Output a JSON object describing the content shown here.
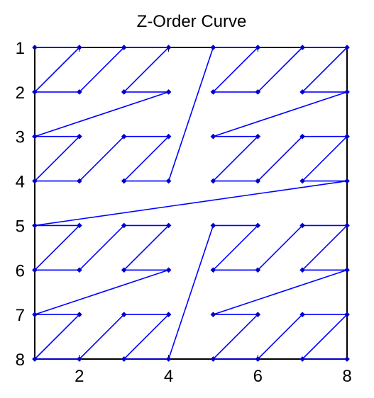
{
  "chart_data": {
    "type": "line",
    "title": "Z-Order Curve",
    "xlabel": "",
    "ylabel": "",
    "xlim": [
      1,
      8
    ],
    "ylim": [
      1,
      8
    ],
    "y_reversed": true,
    "grid": false,
    "x_ticks": [
      2,
      4,
      6,
      8
    ],
    "y_ticks": [
      1,
      2,
      3,
      4,
      5,
      6,
      7,
      8
    ],
    "line_color": "#0000ff",
    "marker_color": "#0000cc",
    "marker": "diamond",
    "series": [
      {
        "x": [
          1,
          2,
          1,
          2,
          3,
          4,
          3,
          4,
          1,
          2,
          1,
          2,
          3,
          4,
          3,
          4,
          5,
          6,
          5,
          6,
          7,
          8,
          7,
          8,
          5,
          6,
          5,
          6,
          7,
          8,
          7,
          8,
          1,
          2,
          1,
          2,
          3,
          4,
          3,
          4,
          1,
          2,
          1,
          2,
          3,
          4,
          3,
          4,
          5,
          6,
          5,
          6,
          7,
          8,
          7,
          8,
          5,
          6,
          5,
          6,
          7,
          8,
          7,
          8
        ],
        "y": [
          1,
          1,
          2,
          2,
          1,
          1,
          2,
          2,
          3,
          3,
          4,
          4,
          3,
          3,
          4,
          4,
          1,
          1,
          2,
          2,
          1,
          1,
          2,
          2,
          3,
          3,
          4,
          4,
          3,
          3,
          4,
          4,
          5,
          5,
          6,
          6,
          5,
          5,
          6,
          6,
          7,
          7,
          8,
          8,
          7,
          7,
          8,
          8,
          5,
          5,
          6,
          6,
          5,
          5,
          6,
          6,
          7,
          7,
          8,
          8,
          7,
          7,
          8,
          8
        ]
      }
    ]
  }
}
